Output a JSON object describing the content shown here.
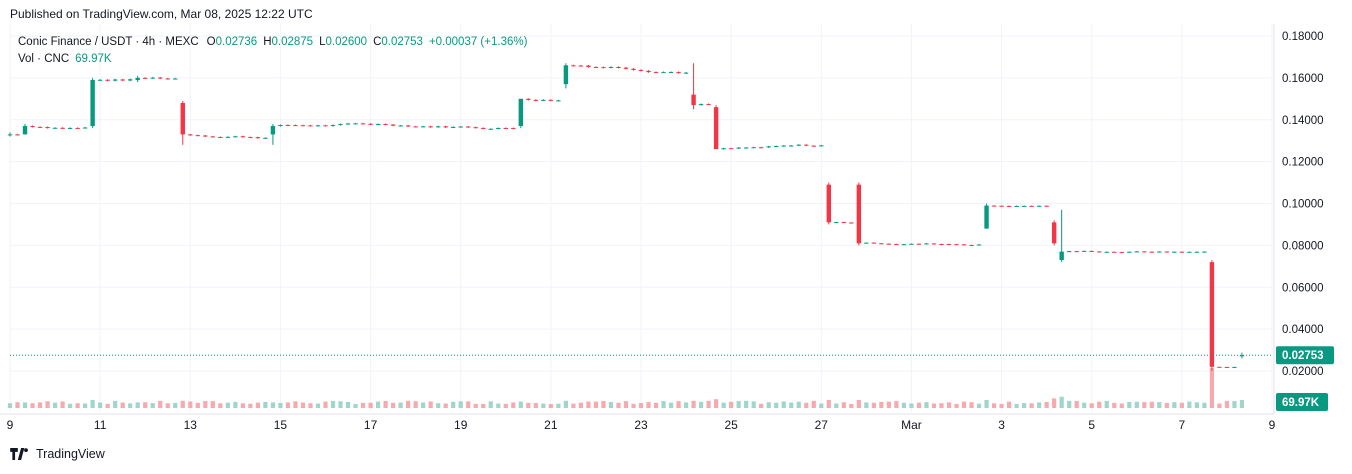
{
  "header": {
    "published": "Published on TradingView.com, Mar 08, 2025 12:22 UTC"
  },
  "legend": {
    "symbol": "Conic Finance / USDT · 4h · MEXC",
    "open_label": "O",
    "open": "0.02736",
    "high_label": "H",
    "high": "0.02875",
    "low_label": "L",
    "low": "0.02600",
    "close_label": "C",
    "close": "0.02753",
    "change": "+0.00037 (+1.36%)",
    "vol_label": "Vol · CNC",
    "vol_value": "69.97K"
  },
  "footer": {
    "brand": "TradingView"
  },
  "colors": {
    "up": "#089981",
    "down": "#f23645",
    "vol_up": "#9fd6cc",
    "vol_down": "#f7a9ae",
    "grid": "#f0f3fa",
    "axis_text": "#131722"
  },
  "chart_data": {
    "type": "candlestick",
    "interval": "4h",
    "y_ticks": [
      "0.18000",
      "0.16000",
      "0.14000",
      "0.12000",
      "0.10000",
      "0.08000",
      "0.06000",
      "0.04000",
      "0.02000"
    ],
    "y_tick_values": [
      0.18,
      0.16,
      0.14,
      0.12,
      0.1,
      0.08,
      0.06,
      0.04,
      0.02
    ],
    "ylim": [
      0.0,
      0.19
    ],
    "x_ticks": [
      {
        "label": "9",
        "day": 9
      },
      {
        "label": "11",
        "day": 11
      },
      {
        "label": "13",
        "day": 13
      },
      {
        "label": "15",
        "day": 15
      },
      {
        "label": "17",
        "day": 17
      },
      {
        "label": "19",
        "day": 19
      },
      {
        "label": "21",
        "day": 21
      },
      {
        "label": "23",
        "day": 23
      },
      {
        "label": "25",
        "day": 25
      },
      {
        "label": "27",
        "day": 27
      },
      {
        "label": "Mar",
        "day": 29
      },
      {
        "label": "3",
        "day": 31
      },
      {
        "label": "5",
        "day": 33
      },
      {
        "label": "7",
        "day": 35
      },
      {
        "label": "9",
        "day": 37
      }
    ],
    "last_price": {
      "value": 0.02753,
      "label": "0.02753"
    },
    "last_volume": {
      "label": "69.97K"
    },
    "grid": true,
    "key_levels": [
      {
        "day": 9.0,
        "open": 0.133,
        "high": 0.134,
        "low": 0.132,
        "close": 0.133,
        "vol": 0.6
      },
      {
        "day": 9.4,
        "open": 0.133,
        "high": 0.138,
        "low": 0.133,
        "close": 0.137,
        "vol": 0.7
      },
      {
        "day": 10.8,
        "open": 0.137,
        "high": 0.16,
        "low": 0.136,
        "close": 0.159,
        "vol": 1.0
      },
      {
        "day": 11.8,
        "open": 0.159,
        "high": 0.161,
        "low": 0.158,
        "close": 0.16,
        "vol": 0.7
      },
      {
        "day": 12.8,
        "open": 0.148,
        "high": 0.149,
        "low": 0.128,
        "close": 0.133,
        "vol": 0.9
      },
      {
        "day": 14.8,
        "open": 0.133,
        "high": 0.138,
        "low": 0.128,
        "close": 0.137,
        "vol": 0.7
      },
      {
        "day": 20.4,
        "open": 0.137,
        "high": 0.15,
        "low": 0.136,
        "close": 0.15,
        "vol": 0.8
      },
      {
        "day": 21.4,
        "open": 0.157,
        "high": 0.167,
        "low": 0.155,
        "close": 0.166,
        "vol": 0.9
      },
      {
        "day": 24.1,
        "open": 0.152,
        "high": 0.167,
        "low": 0.145,
        "close": 0.147,
        "vol": 0.9
      },
      {
        "day": 24.6,
        "open": 0.146,
        "high": 0.147,
        "low": 0.126,
        "close": 0.126,
        "vol": 1.1
      },
      {
        "day": 27.1,
        "open": 0.109,
        "high": 0.11,
        "low": 0.09,
        "close": 0.091,
        "vol": 1.0
      },
      {
        "day": 27.9,
        "open": 0.109,
        "high": 0.11,
        "low": 0.08,
        "close": 0.081,
        "vol": 1.0
      },
      {
        "day": 30.7,
        "open": 0.088,
        "high": 0.1,
        "low": 0.088,
        "close": 0.099,
        "vol": 1.0
      },
      {
        "day": 32.1,
        "open": 0.091,
        "high": 0.092,
        "low": 0.08,
        "close": 0.081,
        "vol": 1.2
      },
      {
        "day": 32.4,
        "open": 0.073,
        "high": 0.097,
        "low": 0.072,
        "close": 0.077,
        "vol": 1.4
      },
      {
        "day": 35.6,
        "open": 0.072,
        "high": 0.073,
        "low": 0.02,
        "close": 0.022,
        "vol": 5.0
      },
      {
        "day": 36.3,
        "open": 0.027,
        "high": 0.02875,
        "low": 0.026,
        "close": 0.02753,
        "vol": 1.0
      }
    ]
  }
}
